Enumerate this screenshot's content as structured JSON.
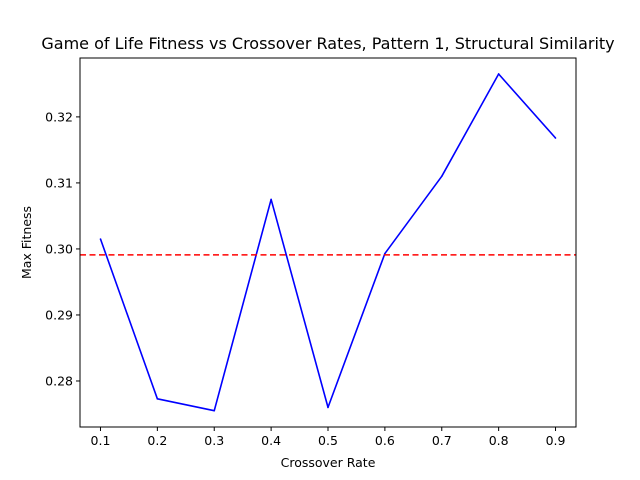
{
  "chart_data": {
    "type": "line",
    "title": "Game of Life Fitness vs Crossover Rates, Pattern 1, Structural Similarity",
    "xlabel": "Crossover Rate",
    "ylabel": "Max Fitness",
    "x": [
      0.1,
      0.2,
      0.3,
      0.4,
      0.5,
      0.6,
      0.7,
      0.8,
      0.9
    ],
    "series": [
      {
        "values": [
          0.3015,
          0.2773,
          0.2755,
          0.3075,
          0.276,
          0.2993,
          0.311,
          0.3265,
          0.3168
        ],
        "color": "#0000ff"
      }
    ],
    "reference_line": {
      "y": 0.2991,
      "color": "#ff0000",
      "style": "dashed"
    },
    "xticks": [
      "0.1",
      "0.2",
      "0.3",
      "0.4",
      "0.5",
      "0.6",
      "0.7",
      "0.8",
      "0.9"
    ],
    "yticks": [
      "0.28",
      "0.29",
      "0.30",
      "0.31",
      "0.32"
    ],
    "xlim": [
      0.064,
      0.936
    ],
    "ylim": [
      0.27303,
      0.32892
    ],
    "grid": false,
    "legend": false
  }
}
